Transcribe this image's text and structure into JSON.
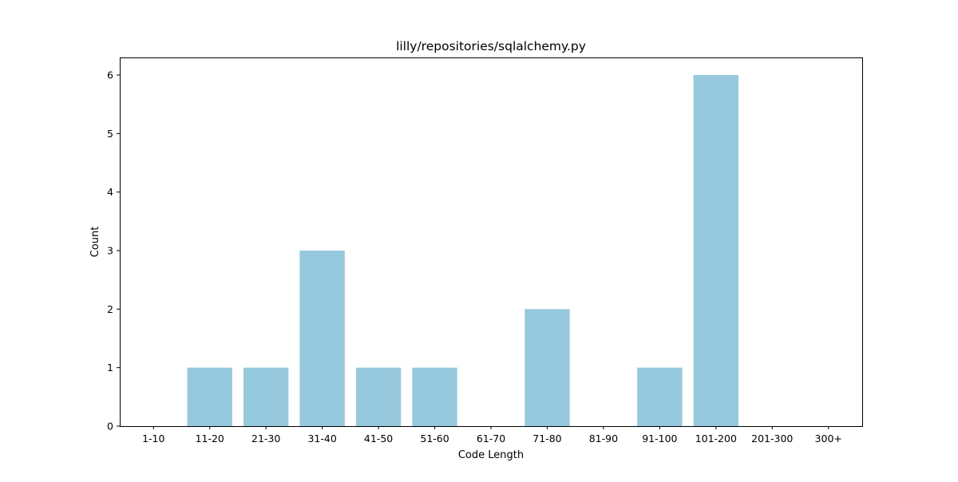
{
  "chart_data": {
    "type": "bar",
    "title": "lilly/repositories/sqlalchemy.py",
    "xlabel": "Code Length",
    "ylabel": "Count",
    "categories": [
      "1-10",
      "11-20",
      "21-30",
      "31-40",
      "41-50",
      "51-60",
      "61-70",
      "71-80",
      "81-90",
      "91-100",
      "101-200",
      "201-300",
      "300+"
    ],
    "values": [
      0,
      1,
      1,
      3,
      1,
      1,
      0,
      2,
      0,
      1,
      6,
      0,
      0
    ],
    "ylim": [
      0,
      6.3
    ],
    "yticks": [
      0,
      1,
      2,
      3,
      4,
      5,
      6
    ],
    "bar_color": "#96c9dd",
    "grid": false,
    "legend": "none"
  }
}
